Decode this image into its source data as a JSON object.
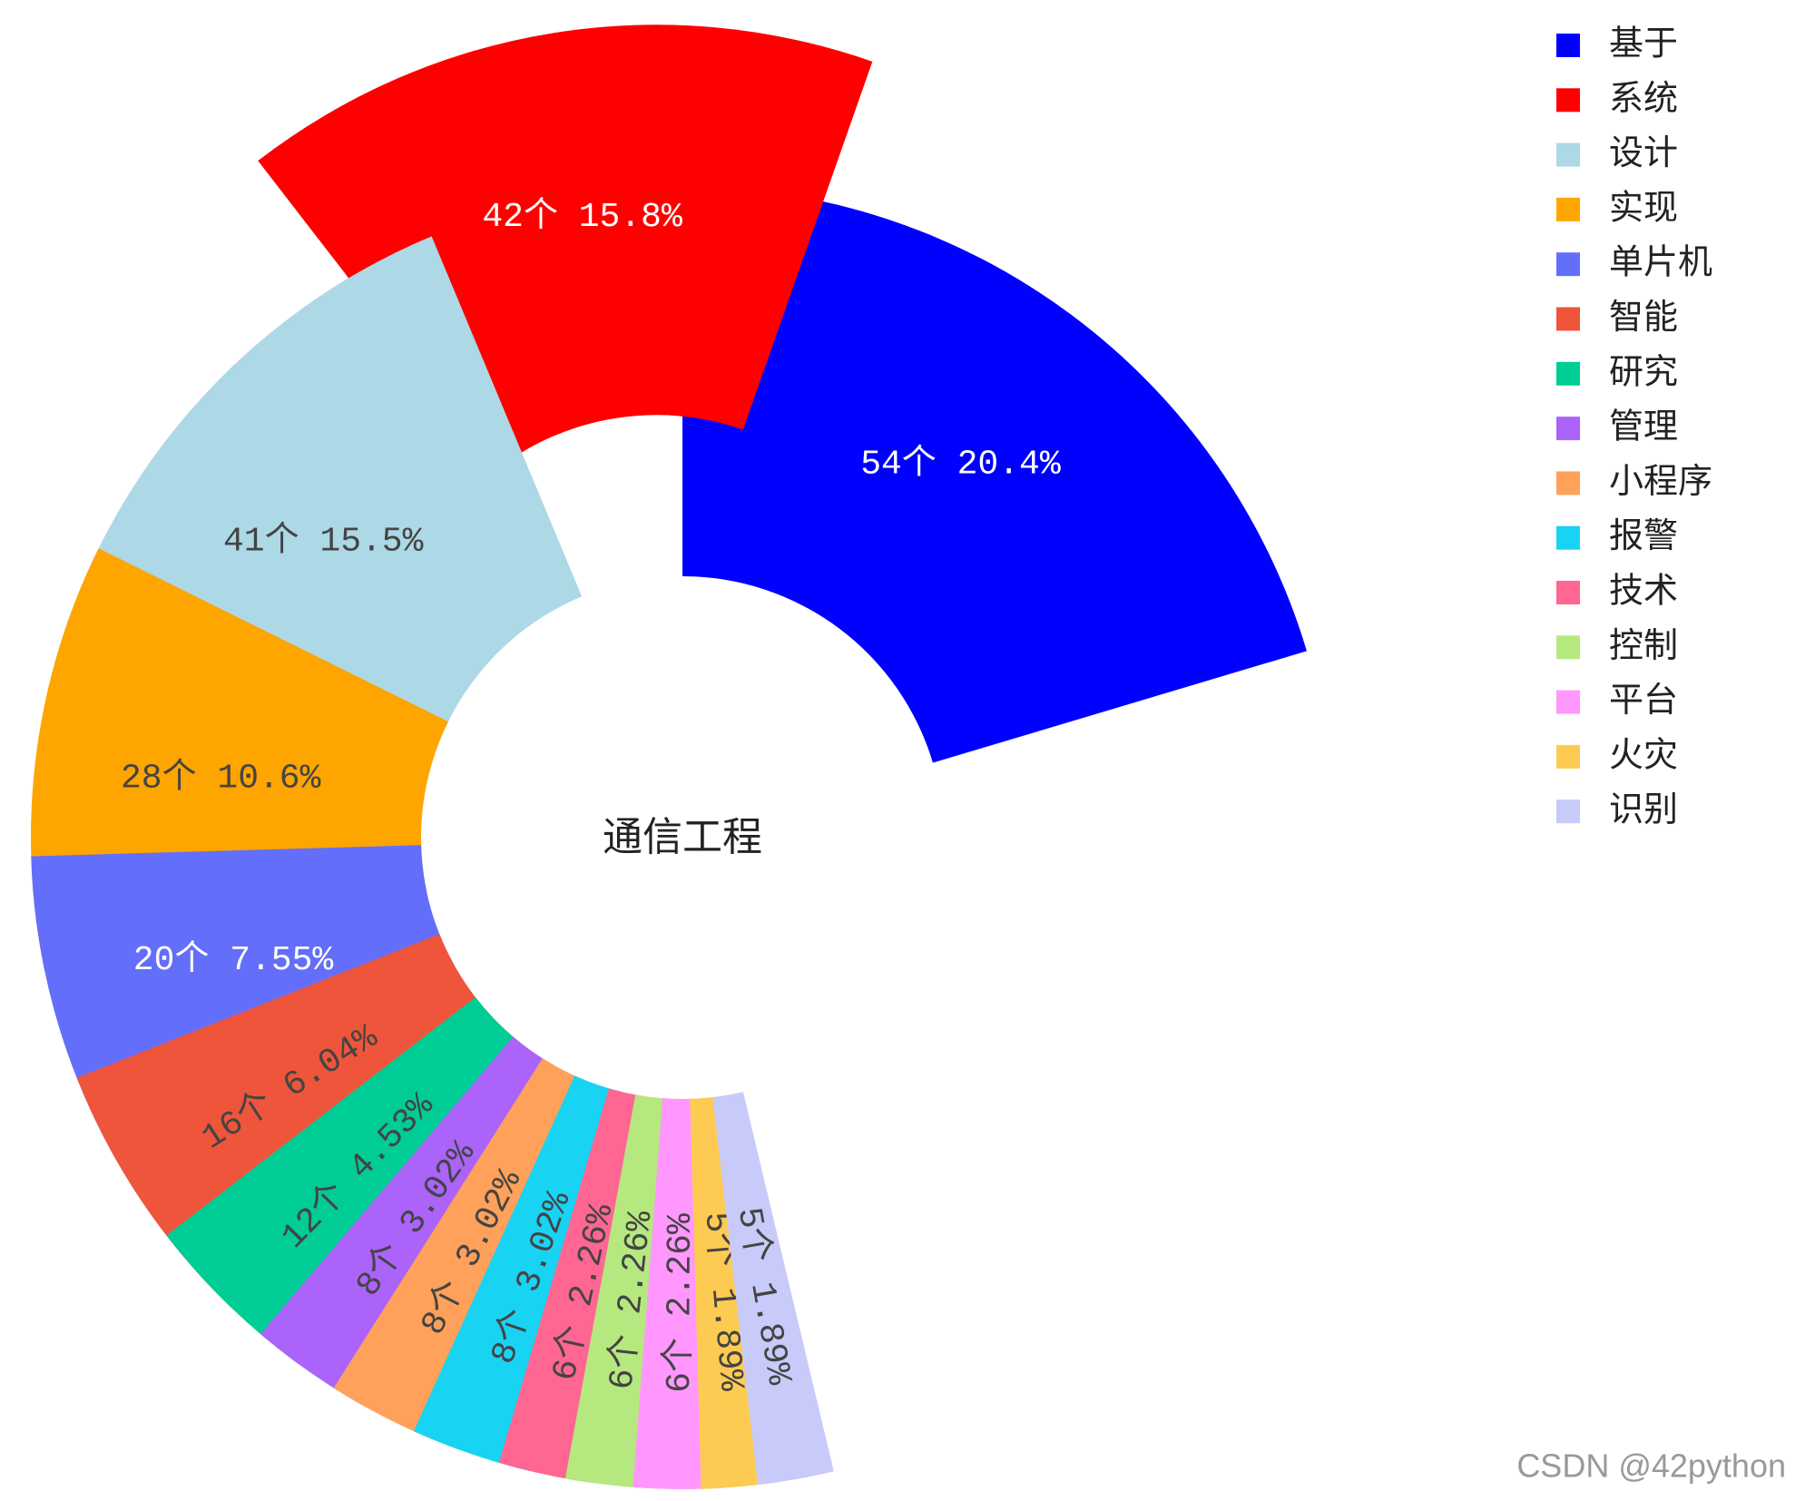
{
  "chart_data": {
    "type": "pie",
    "title": "通信工程",
    "watermark": "CSDN @42python",
    "categories": [
      "基于",
      "系统",
      "设计",
      "实现",
      "单片机",
      "智能",
      "研究",
      "管理",
      "小程序",
      "报警",
      "技术",
      "控制",
      "平台",
      "火灾",
      "识别"
    ],
    "values": [
      54,
      42,
      41,
      28,
      20,
      16,
      12,
      8,
      8,
      8,
      6,
      6,
      6,
      5,
      5
    ],
    "value_labels": [
      "54个 20.4%",
      "42个 15.8%",
      "41个 15.5%",
      "28个 10.6%",
      "20个 7.55%",
      "16个 6.04%",
      "12个 4.53%",
      "8个 3.02%",
      "8个 3.02%",
      "8个 3.02%",
      "6个 2.26%",
      "6个 2.26%",
      "6个 2.26%",
      "5个 1.89%",
      "5个 1.89%"
    ],
    "colors": [
      "#0000ff",
      "#ff0000",
      "#add8e6",
      "#ffa500",
      "#636efa",
      "#ef553b",
      "#00cc96",
      "#ab63fa",
      "#ffa15a",
      "#19d3f3",
      "#ff6692",
      "#b6e880",
      "#ff97ff",
      "#fecb52",
      "#c8cafa"
    ],
    "pull": [
      0,
      1,
      0,
      0,
      0,
      0,
      0,
      0,
      0,
      0,
      0,
      0,
      0,
      0,
      0
    ]
  }
}
